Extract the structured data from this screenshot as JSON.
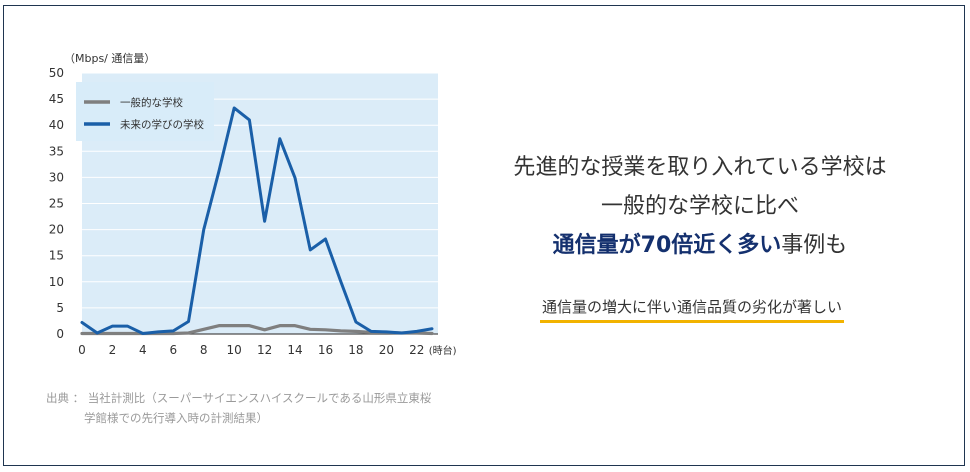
{
  "chart_data": {
    "type": "line",
    "unit_label": "（Mbps/ 通信量）",
    "x_unit_label": "(時台)",
    "x": [
      0,
      1,
      2,
      3,
      4,
      5,
      6,
      7,
      8,
      9,
      10,
      11,
      12,
      13,
      14,
      15,
      16,
      17,
      18,
      19,
      20,
      21,
      22,
      23
    ],
    "x_tick_labels": [
      "0",
      "2",
      "4",
      "6",
      "8",
      "10",
      "12",
      "14",
      "16",
      "18",
      "20",
      "22"
    ],
    "y_ticks": [
      0,
      5,
      10,
      15,
      20,
      25,
      30,
      35,
      40,
      45,
      50
    ],
    "ylim": [
      0,
      50
    ],
    "xlim": [
      0,
      23
    ],
    "grid": true,
    "legend_position": "top-left",
    "series": [
      {
        "name": "一般的な学校",
        "color": "#7f7f7f",
        "values": [
          0.1,
          0.1,
          0.1,
          0.1,
          0.1,
          0.1,
          0.1,
          0.2,
          0.9,
          1.6,
          1.6,
          1.6,
          0.8,
          1.6,
          1.6,
          0.9,
          0.8,
          0.6,
          0.5,
          0.3,
          0.3,
          0.2,
          0.2,
          0.1
        ]
      },
      {
        "name": "未来の学びの学校",
        "color": "#1a5fa8",
        "values": [
          2.2,
          0.2,
          1.5,
          1.5,
          0.1,
          0.4,
          0.6,
          2.4,
          20.0,
          31.2,
          43.3,
          41.0,
          21.6,
          37.4,
          29.9,
          16.1,
          18.2,
          10.1,
          2.3,
          0.5,
          0.4,
          0.2,
          0.5,
          1.0
        ]
      }
    ]
  },
  "source": {
    "line1": "出典 ： 当社計測比（スーパーサイエンスハイスクールである山形県立東桜",
    "line2": "学館様での先行導入時の計測結果）"
  },
  "headline": {
    "line1": "先進的な授業を取り入れている学校は",
    "line2": "一般的な学校に比べ",
    "line3_emph": "通信量が70倍近く多い",
    "line3_rest": "事例も"
  },
  "subheadline": "通信量の増大に伴い通信品質の劣化が著しい",
  "colors": {
    "frame": "#1f3550",
    "plot_background": "#dbecf8",
    "legend_background": "#d8ecf9",
    "emphasis": "#14306e",
    "underline": "#f2b300"
  }
}
